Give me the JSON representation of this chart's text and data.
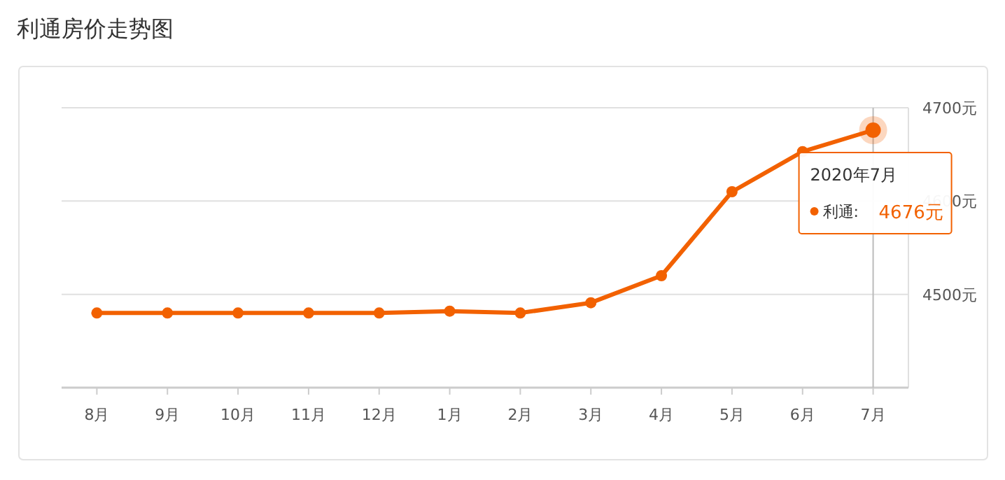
{
  "chart_data": {
    "type": "line",
    "title": "利通房价走势图",
    "categories": [
      "8月",
      "9月",
      "10月",
      "11月",
      "12月",
      "1月",
      "2月",
      "3月",
      "4月",
      "5月",
      "6月",
      "7月"
    ],
    "series": [
      {
        "color": "#f26100",
        "values": [
          4480,
          4480,
          4480,
          4480,
          4480,
          4482,
          4480,
          4491,
          4520,
          4610,
          4653,
          4676
        ]
      }
    ],
    "ylim": [
      4400,
      4700
    ],
    "yticks": [
      {
        "value": 4500,
        "label": "4500元"
      },
      {
        "value": 4600,
        "label": "4600元"
      },
      {
        "value": 4700,
        "label": "4700元"
      }
    ],
    "grid": "y",
    "marker": "circle",
    "line_style": "solid",
    "ref_lines": [
      {
        "axis": "x",
        "value": "7月",
        "color": "#bbbbbb"
      }
    ],
    "annotations": [
      {
        "text": "2020年7月",
        "x": "7月",
        "y": 4676
      },
      "利通:",
      "4676元"
    ]
  }
}
